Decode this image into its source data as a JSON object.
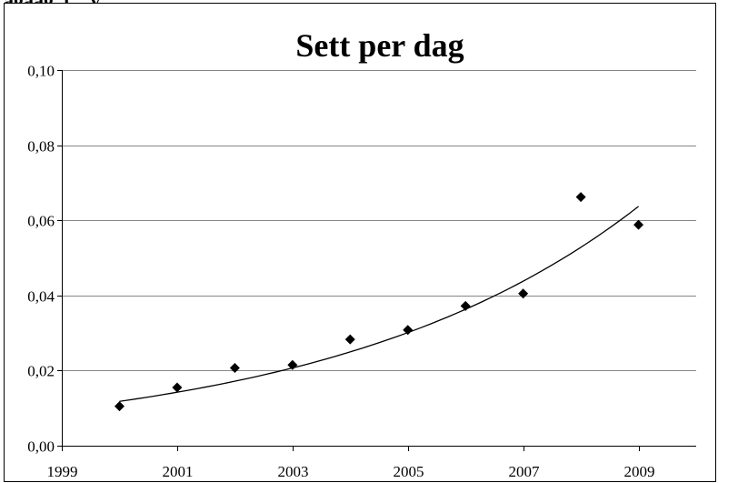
{
  "header_fragment": "agåag..t....y",
  "chart_data": {
    "type": "scatter",
    "title": "Sett per dag",
    "xlabel": "",
    "ylabel": "",
    "xlim": [
      1999,
      2010
    ],
    "ylim": [
      0,
      0.1
    ],
    "x_ticks": [
      1999,
      2001,
      2003,
      2005,
      2007,
      2009
    ],
    "x_tick_labels": [
      "1999",
      "2001",
      "2003",
      "2005",
      "2007",
      "2009"
    ],
    "y_ticks": [
      0,
      0.02,
      0.04,
      0.06,
      0.08,
      0.1
    ],
    "y_tick_labels": [
      "0,00",
      "0,02",
      "0,04",
      "0,06",
      "0,08",
      "0,10"
    ],
    "grid": "horizontal",
    "legend": "none",
    "series": [
      {
        "marker": "diamond",
        "color": "#000000",
        "x": [
          2000,
          2001,
          2002,
          2003,
          2004,
          2005,
          2006,
          2007,
          2008,
          2009
        ],
        "y": [
          0.0105,
          0.0155,
          0.0207,
          0.0215,
          0.0283,
          0.0308,
          0.0372,
          0.0405,
          0.0662,
          0.0588
        ]
      }
    ],
    "trendline": {
      "type": "exponential",
      "color": "#000000",
      "x": [
        2000,
        2009
      ],
      "y": [
        0.0118,
        0.0637
      ]
    }
  }
}
